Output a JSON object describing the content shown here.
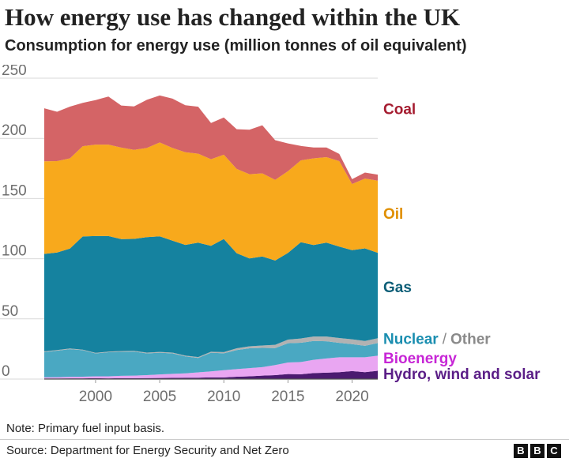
{
  "title": "How energy use has changed within the UK",
  "subtitle": "Consumption for energy use (million tonnes of oil equivalent)",
  "note": "Note: Primary fuel input basis.",
  "source": "Source: Department for Energy Security and Net Zero",
  "logo": [
    "B",
    "B",
    "C"
  ],
  "colors": {
    "hydro": "#4b1a70",
    "bioenergy": "#e9a6f2",
    "nuclear": "#4aa8c2",
    "other": "#b2b2b2",
    "gas": "#15829f",
    "oil": "#f8a91c",
    "coal": "#d46466",
    "gridline": "#d9d9d9",
    "axis_text": "#6e6e6e"
  },
  "chart_data": {
    "type": "area",
    "stacked": true,
    "title": "How energy use has changed within the UK",
    "subtitle": "Consumption for energy use (million tonnes of oil equivalent)",
    "xlabel": "",
    "ylabel": "",
    "xlim": [
      1996,
      2022
    ],
    "ylim": [
      0,
      250
    ],
    "xticks": [
      2000,
      2005,
      2010,
      2015,
      2020
    ],
    "yticks": [
      0,
      50,
      100,
      150,
      200,
      250
    ],
    "grid": true,
    "legend": "inline-right",
    "x": [
      1996,
      1997,
      1998,
      1999,
      2000,
      2001,
      2002,
      2003,
      2004,
      2005,
      2006,
      2007,
      2008,
      2009,
      2010,
      2011,
      2012,
      2013,
      2014,
      2015,
      2016,
      2017,
      2018,
      2019,
      2020,
      2021,
      2022
    ],
    "series": [
      {
        "name": "Hydro, wind and solar",
        "color": "#4b1a70",
        "values": [
          0.5,
          0.5,
          0.6,
          0.6,
          0.7,
          0.6,
          0.7,
          0.7,
          0.8,
          0.9,
          1.0,
          1.1,
          1.2,
          1.4,
          1.4,
          2.0,
          2.3,
          2.9,
          3.3,
          4.2,
          4.0,
          5.0,
          5.3,
          5.8,
          6.6,
          5.8,
          6.9
        ]
      },
      {
        "name": "Bioenergy",
        "color": "#e9a6f2",
        "values": [
          1.0,
          1.1,
          1.3,
          1.4,
          1.6,
          1.7,
          2.0,
          2.2,
          2.5,
          3.0,
          3.3,
          3.7,
          4.4,
          5.0,
          6.0,
          6.3,
          6.8,
          7.0,
          8.4,
          9.6,
          10.2,
          11.0,
          11.8,
          12.3,
          11.5,
          12.3,
          12.5
        ]
      },
      {
        "name": "Nuclear",
        "color": "#4aa8c2",
        "values": [
          21.0,
          22.0,
          23.0,
          22.0,
          19.0,
          20.0,
          20.0,
          20.0,
          18.0,
          18.0,
          17.0,
          14.0,
          12.0,
          15.5,
          14.0,
          15.8,
          16.5,
          16.0,
          14.0,
          16.0,
          16.0,
          15.6,
          14.3,
          12.0,
          11.0,
          9.5,
          10.5
        ]
      },
      {
        "name": "Other",
        "color": "#b2b2b2",
        "values": [
          0.5,
          0.5,
          0.5,
          0.5,
          0.5,
          0.5,
          0.6,
          0.6,
          0.7,
          0.7,
          0.7,
          0.7,
          0.7,
          0.8,
          1.0,
          1.5,
          1.6,
          2.0,
          2.8,
          3.0,
          3.5,
          3.8,
          4.0,
          4.0,
          4.0,
          4.0,
          4.0
        ]
      },
      {
        "name": "Gas",
        "color": "#15829f",
        "values": [
          81,
          81,
          83,
          94,
          97,
          96,
          93,
          93,
          96,
          96,
          93,
          92,
          95,
          88,
          94,
          79,
          73,
          74,
          70,
          72,
          80,
          76,
          78,
          76,
          74,
          77,
          71
        ]
      },
      {
        "name": "Oil",
        "color": "#f8a91c",
        "values": [
          77,
          76,
          75,
          75,
          76,
          76,
          76,
          74,
          74,
          78,
          77,
          77,
          74,
          72,
          70,
          70,
          70,
          69,
          67,
          68,
          68,
          72,
          71,
          71,
          55,
          58,
          60
        ]
      },
      {
        "name": "Coal",
        "color": "#d46466",
        "values": [
          44,
          41,
          43,
          36,
          37,
          40,
          35,
          36,
          40,
          39,
          41,
          39,
          39,
          30,
          31,
          33,
          37,
          40,
          33,
          23,
          12,
          9,
          8,
          6,
          4,
          5,
          5
        ]
      }
    ],
    "labels": [
      {
        "text": "Coal",
        "color": "#a51c30",
        "anchor_value": 224
      },
      {
        "text": "Oil",
        "color": "#e08f00",
        "anchor_value": 137
      },
      {
        "text": "Gas",
        "color": "#0d5e77",
        "anchor_value": 76
      },
      {
        "text": "Nuclear",
        "color": "#1a8eb0",
        "anchor_value": 33
      },
      {
        "text": "/",
        "color": "#888888",
        "anchor_value": 33
      },
      {
        "text": "Other",
        "color": "#8a8a8a",
        "anchor_value": 33
      },
      {
        "text": "Bioenergy",
        "color": "#c726d6",
        "anchor_value": 17
      },
      {
        "text": "Hydro, wind and solar",
        "color": "#5b1e87",
        "anchor_value": 0
      }
    ]
  }
}
